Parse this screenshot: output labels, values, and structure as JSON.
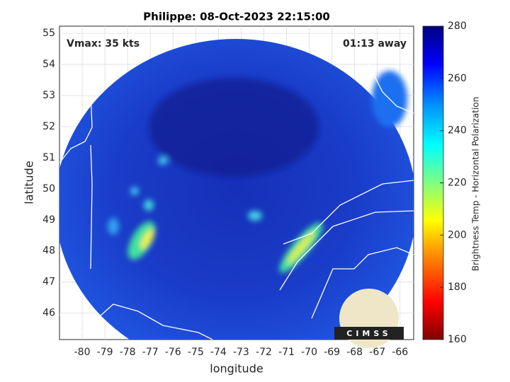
{
  "chart_data": {
    "type": "map",
    "title": "Philippe: 08-Oct-2023 22:15:00",
    "annotations": [
      "Vmax: 35 kts",
      "01:13 away"
    ],
    "xlabel": "longitude",
    "ylabel": "latitude",
    "xlim": [
      -81,
      -65.4
    ],
    "ylim": [
      45.15,
      55.23
    ],
    "xticks": [
      -80,
      -79,
      -78,
      -77,
      -76,
      -75,
      -74,
      -73,
      -72,
      -71,
      -70,
      -69,
      -68,
      -67,
      -66
    ],
    "yticks": [
      46,
      47,
      48,
      49,
      50,
      51,
      52,
      53,
      54,
      55
    ],
    "grid": true,
    "colorbar": {
      "label": "Brightness Temp - Horizontal Polarization",
      "lim": [
        160,
        280
      ],
      "ticks": [
        160,
        180,
        200,
        220,
        240,
        260,
        280
      ]
    },
    "logo": "CIMSS"
  }
}
